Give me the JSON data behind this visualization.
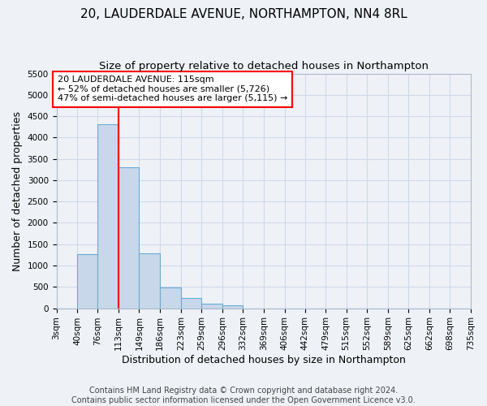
{
  "title": "20, LAUDERDALE AVENUE, NORTHAMPTON, NN4 8RL",
  "subtitle": "Size of property relative to detached houses in Northampton",
  "xlabel": "Distribution of detached houses by size in Northampton",
  "ylabel": "Number of detached properties",
  "bar_color": "#c8d8ea",
  "bar_edge_color": "#6aaad4",
  "annotation_text": "20 LAUDERDALE AVENUE: 115sqm\n← 52% of detached houses are smaller (5,726)\n47% of semi-detached houses are larger (5,115) →",
  "property_line_x": 113,
  "property_line_color": "red",
  "footnote": "Contains HM Land Registry data © Crown copyright and database right 2024.\nContains public sector information licensed under the Open Government Licence v3.0.",
  "bin_edges": [
    3,
    40,
    76,
    113,
    149,
    186,
    223,
    259,
    296,
    332,
    369,
    406,
    442,
    479,
    515,
    552,
    589,
    625,
    662,
    698,
    735
  ],
  "bin_counts": [
    0,
    1270,
    4320,
    3300,
    1290,
    480,
    240,
    100,
    60,
    0,
    0,
    0,
    0,
    0,
    0,
    0,
    0,
    0,
    0,
    0
  ],
  "tick_labels": [
    "3sqm",
    "40sqm",
    "76sqm",
    "113sqm",
    "149sqm",
    "186sqm",
    "223sqm",
    "259sqm",
    "296sqm",
    "332sqm",
    "369sqm",
    "406sqm",
    "442sqm",
    "479sqm",
    "515sqm",
    "552sqm",
    "589sqm",
    "625sqm",
    "662sqm",
    "698sqm",
    "735sqm"
  ],
  "ylim": [
    0,
    5500
  ],
  "yticks": [
    0,
    500,
    1000,
    1500,
    2000,
    2500,
    3000,
    3500,
    4000,
    4500,
    5000,
    5500
  ],
  "background_color": "#eef2f7",
  "grid_color": "#d0d8e8",
  "title_fontsize": 11,
  "subtitle_fontsize": 9.5,
  "axis_label_fontsize": 9,
  "tick_fontsize": 7.5,
  "footnote_fontsize": 7
}
